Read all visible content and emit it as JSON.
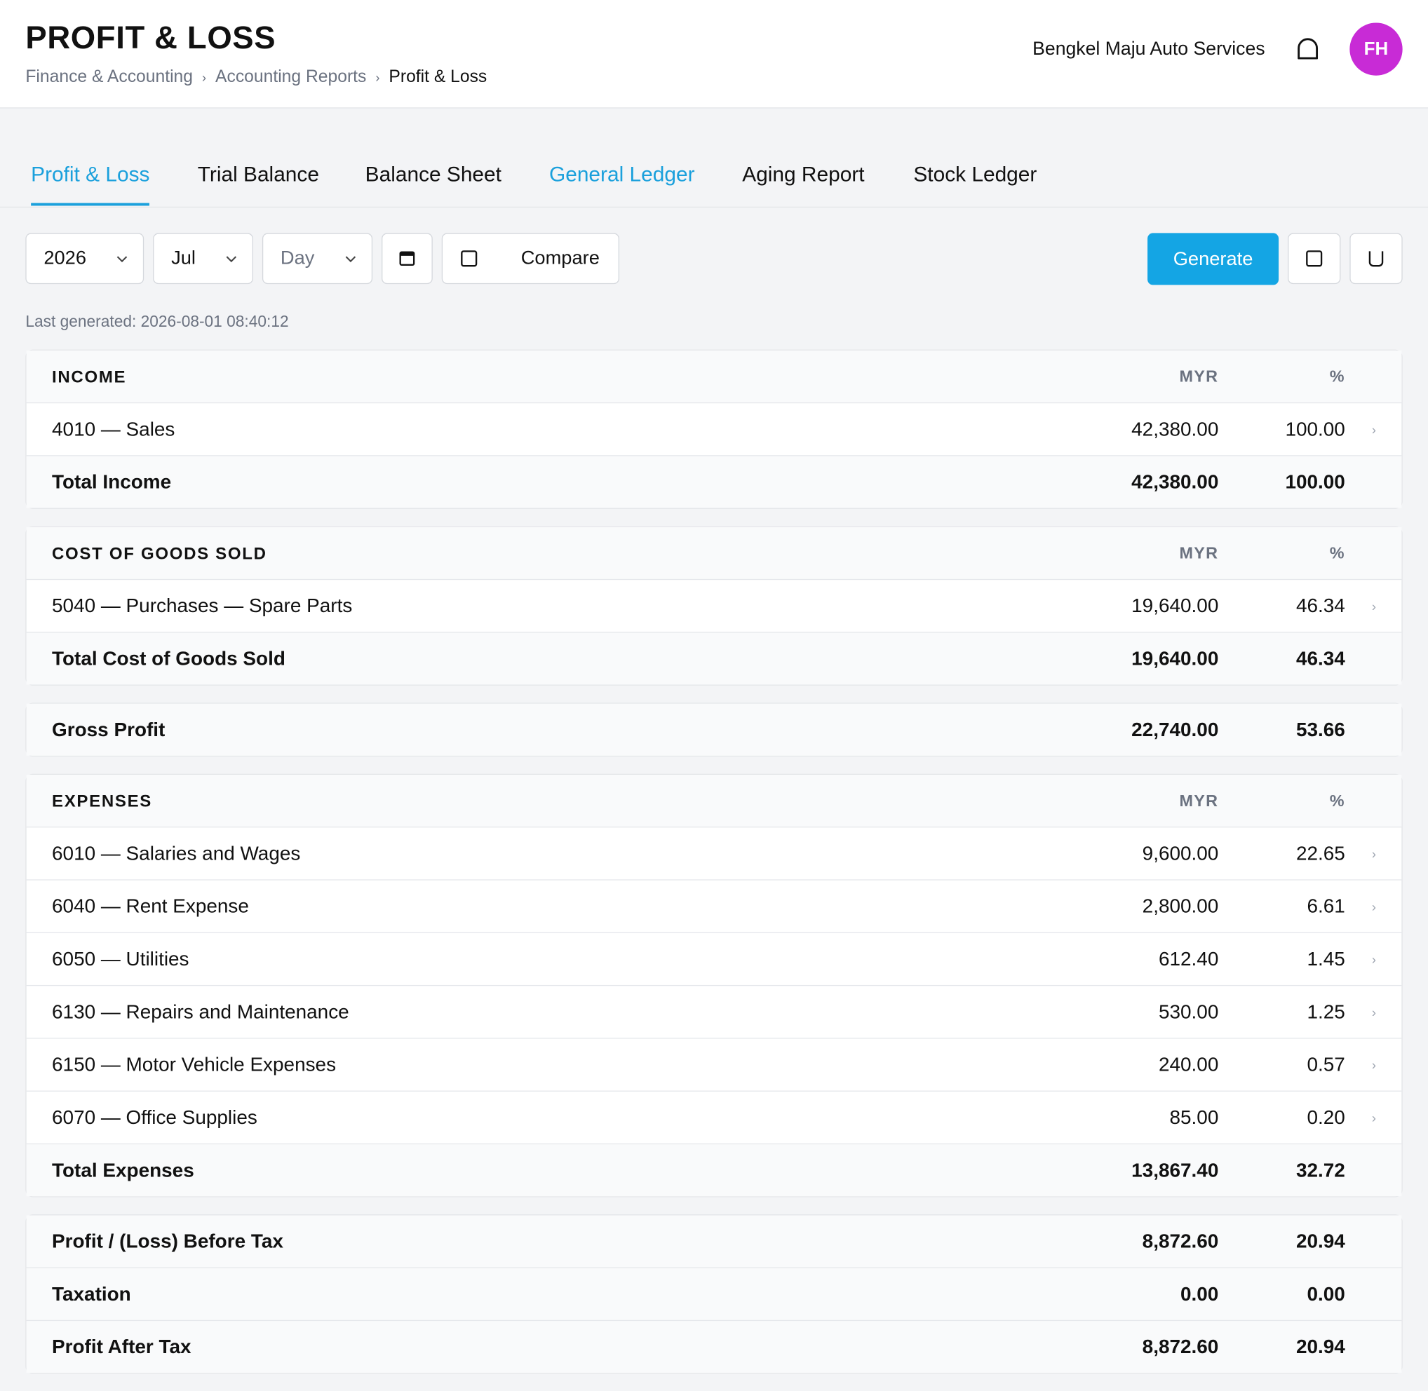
{
  "header": {
    "title": "PROFIT & LOSS",
    "breadcrumbs": [
      "Finance & Accounting",
      "Accounting Reports",
      "Profit & Loss"
    ],
    "company": "Bengkel Maju Auto Services",
    "avatar": "FH"
  },
  "tabs": [
    "Profit & Loss",
    "Trial Balance",
    "Balance Sheet",
    "General Ledger",
    "Aging Report",
    "Stock Ledger"
  ],
  "toolbar": {
    "year": "2026",
    "month": "Jul",
    "period": "Day",
    "compare": "Compare",
    "generate": "Generate",
    "last_generated": "Last generated: 2026-08-01 08:40:12"
  },
  "report": [
    {
      "heading": "INCOME",
      "columns": [
        "MYR",
        "%"
      ],
      "lines": [
        {
          "label": "4010 — Sales",
          "amount": "42,380.00",
          "pct": "100.00"
        }
      ],
      "total": {
        "label": "Total Income",
        "amount": "42,380.00",
        "pct": "100.00"
      }
    },
    {
      "heading": "COST OF GOODS SOLD",
      "columns": [
        "MYR",
        "%"
      ],
      "lines": [
        {
          "label": "5040 — Purchases — Spare Parts",
          "amount": "19,640.00",
          "pct": "46.34"
        }
      ],
      "total": {
        "label": "Total Cost of Goods Sold",
        "amount": "19,640.00",
        "pct": "46.34"
      }
    },
    {
      "summary": [
        {
          "label": "Gross Profit",
          "amount": "22,740.00",
          "pct": "53.66"
        }
      ]
    },
    {
      "heading": "EXPENSES",
      "columns": [
        "MYR",
        "%"
      ],
      "lines": [
        {
          "label": "6010 — Salaries and Wages",
          "amount": "9,600.00",
          "pct": "22.65"
        },
        {
          "label": "6040 — Rent Expense",
          "amount": "2,800.00",
          "pct": "6.61"
        },
        {
          "label": "6050 — Utilities",
          "amount": "612.40",
          "pct": "1.45"
        },
        {
          "label": "6130 — Repairs and Maintenance",
          "amount": "530.00",
          "pct": "1.25"
        },
        {
          "label": "6150 — Motor Vehicle Expenses",
          "amount": "240.00",
          "pct": "0.57"
        },
        {
          "label": "6070 — Office Supplies",
          "amount": "85.00",
          "pct": "0.20"
        }
      ],
      "total": {
        "label": "Total Expenses",
        "amount": "13,867.40",
        "pct": "32.72"
      }
    },
    {
      "summary": [
        {
          "label": "Profit / (Loss) Before Tax",
          "amount": "8,872.60",
          "pct": "20.94"
        },
        {
          "label": "Taxation",
          "amount": "0.00",
          "pct": "0.00"
        },
        {
          "label": "Profit After Tax",
          "amount": "8,872.60",
          "pct": "20.94"
        }
      ]
    }
  ]
}
